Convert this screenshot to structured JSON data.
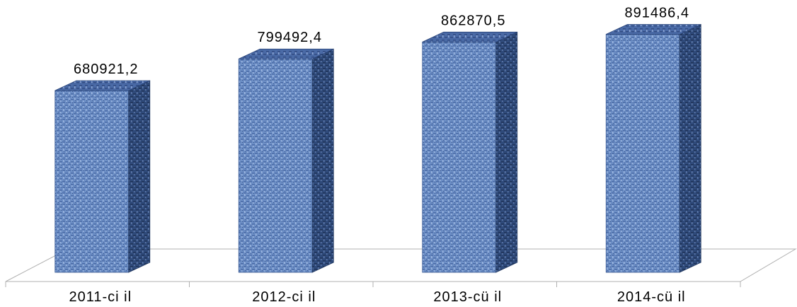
{
  "chart_data": {
    "type": "bar",
    "categories": [
      "2011-ci il",
      "2012-ci il",
      "2013-cü il",
      "2014-cü il"
    ],
    "values": [
      680921.2,
      799492.4,
      862870.5,
      891486.4
    ],
    "value_labels": [
      "680921,2",
      "799492,4",
      "862870,5",
      "891486,4"
    ],
    "title": "",
    "xlabel": "",
    "ylabel": "",
    "ylim": [
      0,
      950000
    ],
    "grid": false,
    "legend": "none",
    "style": "3d-column",
    "colors": {
      "front": "#6d8fc6",
      "side": "#2f4a7a",
      "top": "#4a6aa6",
      "texture": "#1f3560",
      "floor": "#b0b0b0"
    }
  }
}
